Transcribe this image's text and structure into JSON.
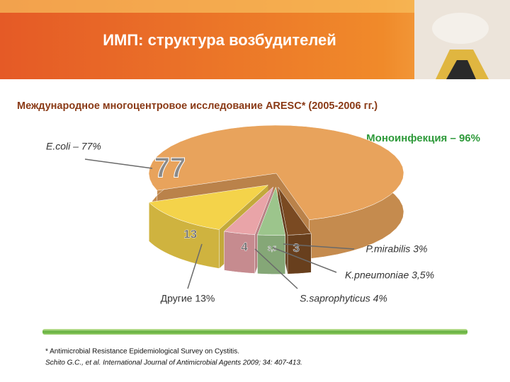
{
  "chart_data": {
    "type": "pie",
    "title": "ИМП: структура возбудителей",
    "subtitle": "Международное многоцентровое исследование ARESC* (2005-2006 гг.)",
    "annotation": "Моноинфекция – 96%",
    "labels": [
      "E.coli  – 77%",
      "Другие 13%",
      "S.saprophyticus 4%",
      "K.pneumoniae 3,5%",
      "P.mirabilis 3%"
    ],
    "values": [
      77,
      13,
      4,
      3.5,
      3
    ],
    "value_labels": [
      "77",
      "13",
      "4",
      "3,5",
      "3"
    ],
    "colors": [
      "#e8a35c",
      "#f4d34a",
      "#e9a4a8",
      "#9cc58c",
      "#7a4a22"
    ],
    "footnotes": [
      "* Antimicrobial Resistance Epidemiological Survey on Cystitis.",
      "Schito G.C., et al. International Journal of Antimicrobial Agents 2009; 34: 407-413."
    ]
  }
}
